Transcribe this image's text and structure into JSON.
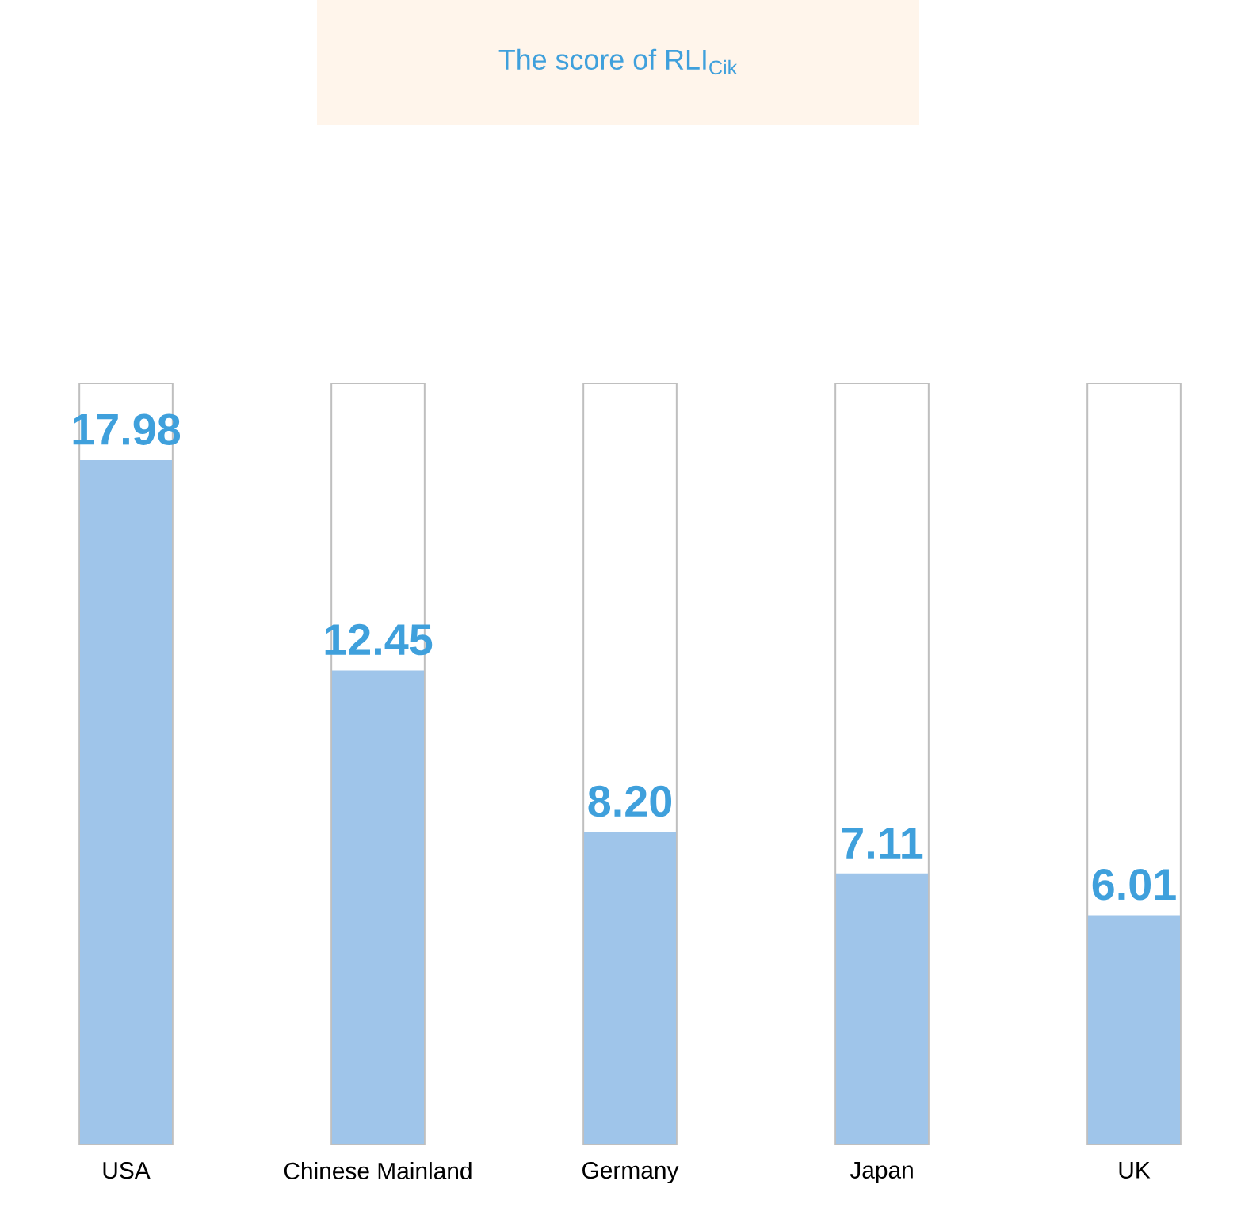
{
  "chart_data": {
    "type": "bar",
    "title": "The score of RLI$_{Cik}$",
    "categories": [
      "USA",
      "Chinese Mainland",
      "Germany",
      "Japan",
      "UK"
    ],
    "values": [
      17.98,
      12.45,
      8.2,
      7.11,
      6.01
    ],
    "value_labels": [
      "17.98",
      "12.45",
      "8.20",
      "7.11",
      "6.01"
    ],
    "color": "#9fc5ea",
    "ylim": [
      0,
      20
    ]
  }
}
